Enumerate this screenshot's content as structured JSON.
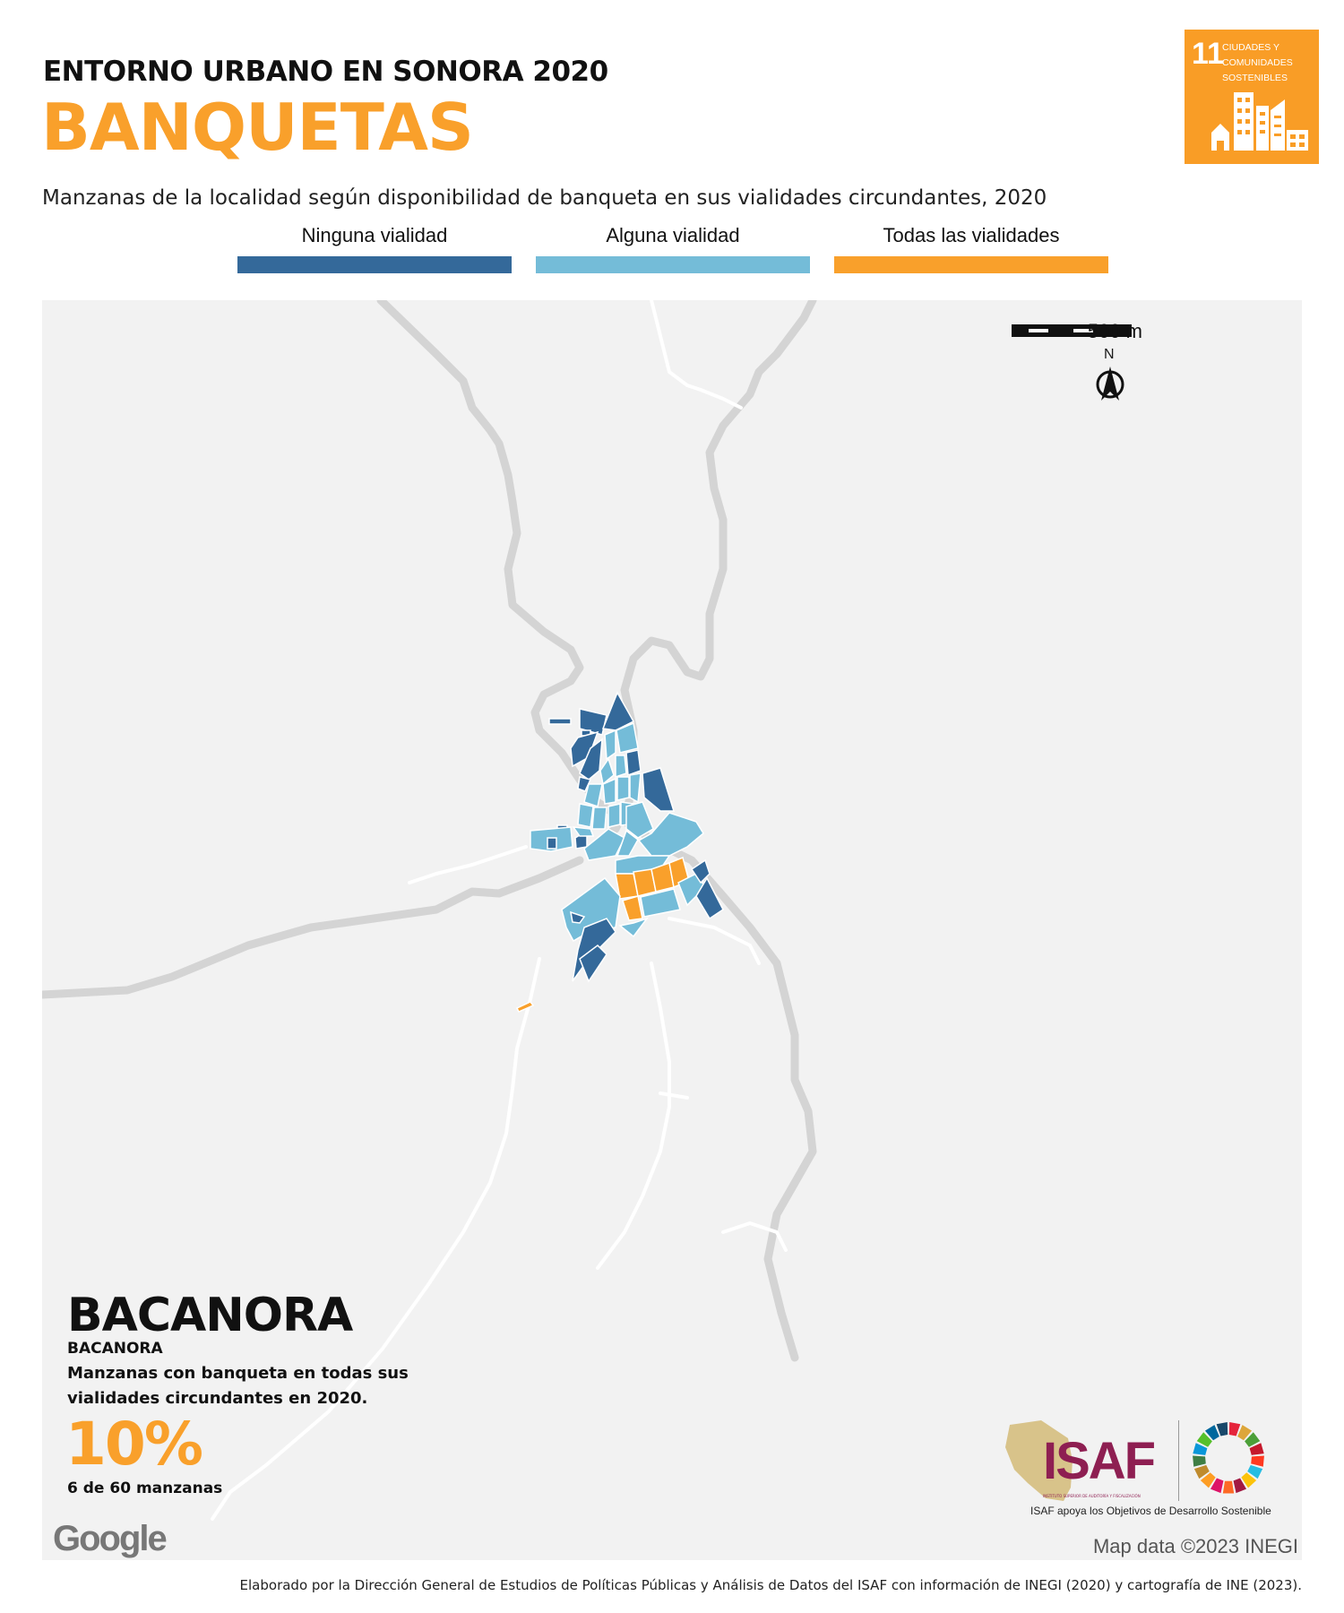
{
  "header": {
    "kicker": "ENTORNO URBANO EN SONORA 2020",
    "title": "BANQUETAS",
    "subtitle": "Manzanas de la localidad según disponibilidad de banqueta en sus vialidades circundantes, 2020"
  },
  "legend": [
    {
      "label": "Ninguna vialidad",
      "color": "#34699a"
    },
    {
      "label": "Alguna vialidad",
      "color": "#74bcd8"
    },
    {
      "label": "Todas las vialidades",
      "color": "#f9a02b"
    }
  ],
  "sdg_badge": {
    "number": "11",
    "text": "CIUDADES Y COMUNIDADES SOSTENIBLES",
    "color": "#f99d26",
    "icon": "city-buildings-icon"
  },
  "map": {
    "scale_label": "500 m",
    "north_label": "N",
    "background": "#f2f2f2",
    "road_color": "#d4d4d4",
    "minor_road_color": "#ffffff",
    "attribution_logo": "Google",
    "map_data": "Map data ©2023 INEGI"
  },
  "locality": {
    "municipality": "BACANORA",
    "locality": "BACANORA",
    "description": "Manzanas con banqueta en todas sus vialidades circundantes en 2020.",
    "percentage": "10%",
    "count_text": "6 de 60 manzanas"
  },
  "logos": {
    "isaf": "ISAF",
    "isaf_subtitle": "INSTITUTO SUPERIOR DE AUDITORÍA Y FISCALIZACIÓN",
    "isaf_caption": "ISAF apoya los Objetivos de Desarrollo Sostenible",
    "isaf_color": "#8e1f52",
    "sdg_wheel_icon": "sdg-wheel-icon"
  },
  "footer": {
    "credit": "Elaborado por la Dirección General de Estudios de Políticas Públicas y Análisis de Datos del ISAF con información de INEGI (2020) y cartografía de INE (2023)."
  }
}
